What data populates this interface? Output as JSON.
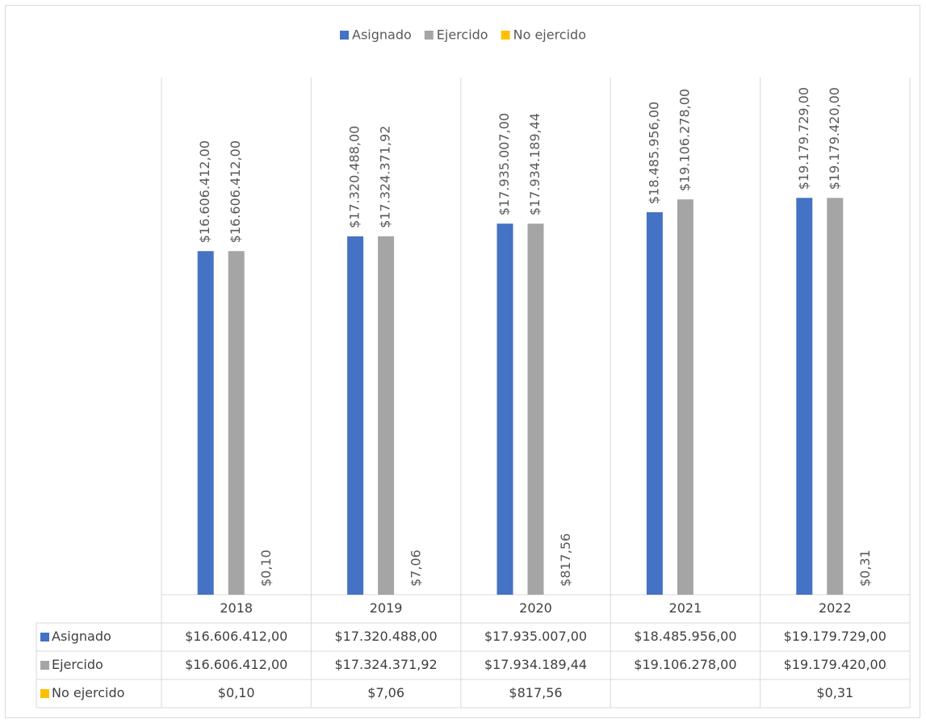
{
  "chart_data": {
    "type": "bar",
    "categories": [
      "2018",
      "2019",
      "2020",
      "2021",
      "2022"
    ],
    "series": [
      {
        "name": "Asignado",
        "color": "#4472c4",
        "values": [
          16606412,
          17320488,
          17935007,
          18485956,
          19179729
        ],
        "value_labels": [
          "$16.606.412,00",
          "$17.320.488,00",
          "$17.935.007,00",
          "$18.485.956,00",
          "$19.179.729,00"
        ]
      },
      {
        "name": "Ejercido",
        "color": "#a5a5a5",
        "values": [
          16606412,
          17324371.92,
          17934189.44,
          19106278,
          19179420
        ],
        "value_labels": [
          "$16.606.412,00",
          "$17.324.371,92",
          "$17.934.189,44",
          "$19.106.278,00",
          "$19.179.420,00"
        ]
      },
      {
        "name": "No ejercido",
        "color": "#ffc000",
        "values": [
          0.1,
          7.06,
          817.56,
          null,
          0.31
        ],
        "value_labels": [
          "$0,10",
          "$7,06",
          "$817,56",
          null,
          "$0,31"
        ]
      }
    ],
    "ylim": [
      0,
      25000000
    ],
    "legend": "top"
  }
}
